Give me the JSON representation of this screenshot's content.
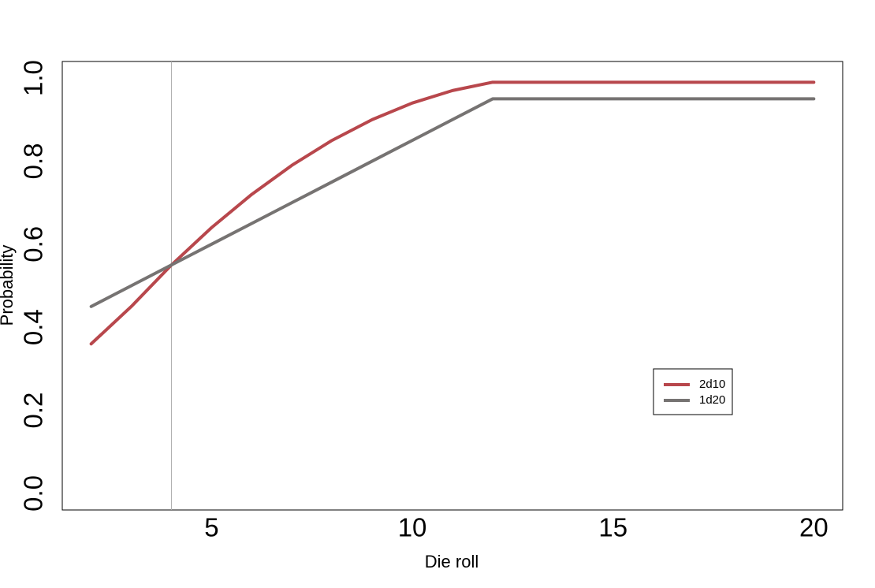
{
  "chart_data": {
    "type": "line",
    "x_label": "Die roll",
    "y_label": "Probability",
    "x": [
      2,
      3,
      4,
      5,
      6,
      7,
      8,
      9,
      10,
      11,
      12,
      13,
      14,
      15,
      16,
      17,
      18,
      19,
      20
    ],
    "series": [
      {
        "name": "2d10",
        "color": "#b8474c",
        "values": [
          0.36,
          0.45,
          0.55,
          0.64,
          0.72,
          0.79,
          0.85,
          0.9,
          0.94,
          0.97,
          0.99,
          0.99,
          0.99,
          0.99,
          0.99,
          0.99,
          0.99,
          0.99,
          0.99
        ]
      },
      {
        "name": "1d20",
        "color": "#767372",
        "values": [
          0.45,
          0.5,
          0.55,
          0.6,
          0.65,
          0.7,
          0.75,
          0.8,
          0.85,
          0.9,
          0.95,
          0.95,
          0.95,
          0.95,
          0.95,
          0.95,
          0.95,
          0.95,
          0.95
        ]
      }
    ],
    "vline": 4,
    "vline_color": "#b0b0b0",
    "xlim": [
      1.28,
      20.72
    ],
    "ylim": [
      -0.04,
      1.04
    ],
    "xticks": [
      5,
      10,
      15,
      20
    ],
    "yticks": [
      {
        "value": 0,
        "label": "0.0"
      },
      0.2,
      0.4,
      0.6,
      0.8,
      {
        "value": 1,
        "label": "1.0"
      }
    ],
    "legend": "right",
    "grid": false
  }
}
